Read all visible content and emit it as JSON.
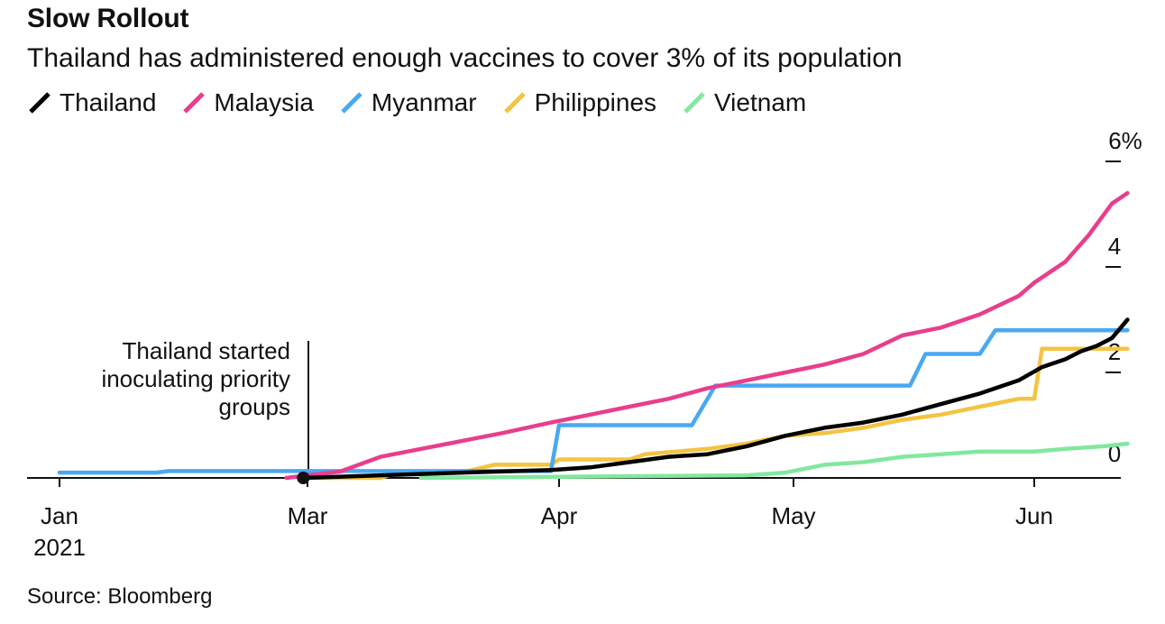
{
  "chart_data": {
    "type": "line",
    "title": "Slow Rollout",
    "subtitle": "Thailand has administered enough vaccines to cover 3% of its population",
    "source": "Source: Bloomberg",
    "xlabel": "",
    "ylabel": "",
    "x_tick_labels": [
      "Jan",
      "Mar",
      "Apr",
      "May",
      "Jun"
    ],
    "x_year_label": "2021",
    "y_tick_labels": [
      "0",
      "2",
      "4",
      "6%"
    ],
    "ylim": [
      0,
      6
    ],
    "grid": false,
    "legend_position": "top-left",
    "annotation": {
      "lines": [
        "Thailand started",
        "inoculating priority",
        "groups"
      ],
      "date": "Feb 28"
    },
    "series": [
      {
        "name": "Thailand",
        "color": "#000000",
        "points": [
          [
            "Feb 28",
            0
          ],
          [
            "Mar 10",
            0.05
          ],
          [
            "Mar 20",
            0.1
          ],
          [
            "Mar 31",
            0.15
          ],
          [
            "Apr 5",
            0.2
          ],
          [
            "Apr 10",
            0.3
          ],
          [
            "Apr 15",
            0.4
          ],
          [
            "Apr 20",
            0.45
          ],
          [
            "Apr 25",
            0.6
          ],
          [
            "Apr 30",
            0.8
          ],
          [
            "May 5",
            0.95
          ],
          [
            "May 10",
            1.05
          ],
          [
            "May 15",
            1.2
          ],
          [
            "May 20",
            1.4
          ],
          [
            "May 25",
            1.6
          ],
          [
            "May 30",
            1.85
          ],
          [
            "Jun 2",
            2.1
          ],
          [
            "Jun 5",
            2.25
          ],
          [
            "Jun 7",
            2.4
          ],
          [
            "Jun 9",
            2.5
          ],
          [
            "Jun 11",
            2.65
          ],
          [
            "Jun 13",
            3.0
          ]
        ]
      },
      {
        "name": "Malaysia",
        "color": "#e83e8c",
        "points": [
          [
            "Feb 24",
            0
          ],
          [
            "Mar 1",
            0.05
          ],
          [
            "Mar 5",
            0.12
          ],
          [
            "Mar 10",
            0.4
          ],
          [
            "Mar 15",
            0.55
          ],
          [
            "Mar 20",
            0.7
          ],
          [
            "Mar 25",
            0.85
          ],
          [
            "Mar 31",
            1.05
          ],
          [
            "Apr 5",
            1.2
          ],
          [
            "Apr 10",
            1.35
          ],
          [
            "Apr 15",
            1.5
          ],
          [
            "Apr 20",
            1.7
          ],
          [
            "Apr 25",
            1.85
          ],
          [
            "Apr 30",
            2.0
          ],
          [
            "May 5",
            2.15
          ],
          [
            "May 10",
            2.35
          ],
          [
            "May 15",
            2.7
          ],
          [
            "May 20",
            2.85
          ],
          [
            "May 25",
            3.1
          ],
          [
            "May 30",
            3.45
          ],
          [
            "Jun 1",
            3.7
          ],
          [
            "Jun 5",
            4.1
          ],
          [
            "Jun 8",
            4.6
          ],
          [
            "Jun 11",
            5.2
          ],
          [
            "Jun 13",
            5.4
          ]
        ]
      },
      {
        "name": "Myanmar",
        "color": "#4aa8f0",
        "points": [
          [
            "Jan 1",
            0.1
          ],
          [
            "Jan 24",
            0.1
          ],
          [
            "Jan 27",
            0.13
          ],
          [
            "Mar 31",
            0.13
          ],
          [
            "Apr 1",
            1.0
          ],
          [
            "Apr 18",
            1.0
          ],
          [
            "Apr 21",
            1.75
          ],
          [
            "May 16",
            1.75
          ],
          [
            "May 18",
            2.35
          ],
          [
            "May 25",
            2.35
          ],
          [
            "May 27",
            2.8
          ],
          [
            "Jun 13",
            2.8
          ]
        ]
      },
      {
        "name": "Philippines",
        "color": "#f5c342",
        "points": [
          [
            "Mar 2",
            0
          ],
          [
            "Mar 10",
            0
          ],
          [
            "Mar 12",
            0.1
          ],
          [
            "Mar 20",
            0.1
          ],
          [
            "Mar 24",
            0.25
          ],
          [
            "Mar 31",
            0.25
          ],
          [
            "Apr 1",
            0.35
          ],
          [
            "Apr 10",
            0.35
          ],
          [
            "Apr 12",
            0.45
          ],
          [
            "Apr 20",
            0.55
          ],
          [
            "Apr 25",
            0.65
          ],
          [
            "Apr 30",
            0.8
          ],
          [
            "May 5",
            0.85
          ],
          [
            "May 10",
            0.95
          ],
          [
            "May 15",
            1.1
          ],
          [
            "May 20",
            1.2
          ],
          [
            "May 25",
            1.35
          ],
          [
            "May 30",
            1.5
          ],
          [
            "Jun 1",
            1.5
          ],
          [
            "Jun 2",
            2.45
          ],
          [
            "Jun 13",
            2.45
          ]
        ]
      },
      {
        "name": "Vietnam",
        "color": "#82e89e",
        "points": [
          [
            "Mar 15",
            0
          ],
          [
            "Apr 25",
            0.05
          ],
          [
            "Apr 30",
            0.1
          ],
          [
            "May 5",
            0.25
          ],
          [
            "May 10",
            0.3
          ],
          [
            "May 15",
            0.4
          ],
          [
            "May 20",
            0.45
          ],
          [
            "May 25",
            0.5
          ],
          [
            "Jun 1",
            0.5
          ],
          [
            "Jun 5",
            0.55
          ],
          [
            "Jun 10",
            0.6
          ],
          [
            "Jun 13",
            0.65
          ]
        ]
      }
    ]
  }
}
